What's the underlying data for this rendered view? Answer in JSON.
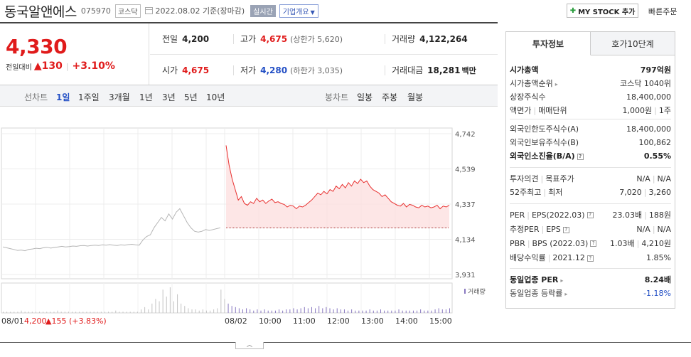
{
  "header": {
    "stock_name": "동국알앤에스",
    "stock_code": "075970",
    "market_tag": "코스닥",
    "date": "2022.08.02",
    "date_suffix": "기준(장마감)",
    "live_tag": "실시간",
    "company_tag": "기업개요",
    "mystock_label": "MY STOCK 추가",
    "quick_order_label": "빠른주문"
  },
  "price": {
    "current": "4,330",
    "diff_label": "전일대비",
    "change_arrow": "▲",
    "change": "130",
    "change_pct": "+3.10%"
  },
  "stats": {
    "prev_close_label": "전일",
    "prev_close": "4,200",
    "high_label": "고가",
    "high": "4,675",
    "upper_limit": "(상한가 5,620)",
    "volume_label": "거래량",
    "volume": "4,122,264",
    "open_label": "시가",
    "open": "4,675",
    "low_label": "저가",
    "low": "4,280",
    "lower_limit": "(하한가 3,035)",
    "amount_label": "거래대금",
    "amount": "18,281",
    "amount_unit": "백만"
  },
  "range_bar": {
    "line_label": "선차트",
    "ranges": [
      "1일",
      "1주일",
      "3개월",
      "1년",
      "3년",
      "5년",
      "10년"
    ],
    "active_range": "1일",
    "candle_label": "봉차트",
    "candles": [
      "일봉",
      "주봉",
      "월봉"
    ]
  },
  "chart_data": {
    "type": "line",
    "y_ticks": [
      "4,742",
      "4,539",
      "4,337",
      "4,134",
      "3,931"
    ],
    "ylim": [
      3931,
      4742
    ],
    "x_ticks": [
      "08/01",
      "08/02",
      "10:00",
      "11:00",
      "12:00",
      "13:00",
      "14:00",
      "15:00"
    ],
    "prev_day_footer": "08/01",
    "prev_day_price": "4,200",
    "prev_day_change": "▲155 (+3.83%)",
    "volume_legend": "거래량",
    "reference_price": 4200,
    "series": [
      {
        "name": "08/01",
        "values": [
          4090,
          4085,
          4080,
          4075,
          4070,
          4072,
          4068,
          4075,
          4078,
          4082,
          4080,
          4085,
          4088,
          4083,
          4087,
          4090,
          4093,
          4090,
          4092,
          4095,
          4093,
          4097,
          4098,
          4095,
          4098,
          4100,
          4098,
          4102,
          4100,
          4103,
          4100,
          4098,
          4102,
          4100,
          4103,
          4105,
          4102,
          4100,
          4130,
          4150,
          4160,
          4200,
          4230,
          4260,
          4240,
          4280,
          4250,
          4290,
          4310,
          4270,
          4230,
          4200,
          4180,
          4175,
          4180,
          4190,
          4185,
          4190,
          4195,
          4200
        ]
      },
      {
        "name": "08/02",
        "values": [
          4675,
          4560,
          4480,
          4420,
          4360,
          4380,
          4340,
          4330,
          4350,
          4340,
          4370,
          4350,
          4360,
          4340,
          4355,
          4365,
          4345,
          4350,
          4340,
          4335,
          4320,
          4330,
          4325,
          4310,
          4325,
          4320,
          4330,
          4345,
          4360,
          4380,
          4400,
          4390,
          4410,
          4395,
          4420,
          4410,
          4440,
          4425,
          4450,
          4430,
          4460,
          4440,
          4470,
          4455,
          4480,
          4460,
          4470,
          4440,
          4420,
          4410,
          4400,
          4380,
          4390,
          4370,
          4350,
          4340,
          4330,
          4325,
          4340,
          4320,
          4335,
          4330,
          4320,
          4315,
          4330,
          4320,
          4325,
          4315,
          4320,
          4330,
          4310,
          4325,
          4320,
          4330
        ]
      }
    ],
    "volume": [
      1,
      1,
      1,
      1,
      1,
      2,
      1,
      1,
      1,
      1,
      1,
      1,
      1,
      1,
      1,
      2,
      1,
      1,
      1,
      1,
      1,
      1,
      1,
      1,
      1,
      1,
      1,
      1,
      1,
      1,
      1,
      2,
      1,
      1,
      1,
      1,
      1,
      1,
      3,
      5,
      3,
      8,
      12,
      10,
      20,
      14,
      22,
      10,
      16,
      8,
      6,
      4,
      3,
      3,
      2,
      3,
      2,
      2,
      3,
      4,
      20,
      12,
      8,
      6,
      5,
      4,
      3,
      4,
      3,
      2,
      3,
      2,
      3,
      2,
      2,
      2,
      3,
      2,
      3,
      3,
      4,
      3,
      4,
      5,
      4,
      5,
      4,
      6,
      4,
      5,
      4,
      3,
      4,
      3,
      3,
      2,
      3,
      2,
      2,
      2,
      2,
      3,
      2,
      2,
      3,
      2,
      2,
      2,
      2,
      3,
      2,
      2,
      2,
      2,
      2,
      3,
      2,
      2,
      2,
      3,
      4,
      3,
      3,
      4
    ]
  },
  "side": {
    "tabs": [
      "투자정보",
      "호가10단계"
    ],
    "rows": [
      {
        "label": "시가총액",
        "value": "797억원",
        "bold": true
      },
      {
        "label": "시가총액순위",
        "value": "코스닥 1040위",
        "arrow": true
      },
      {
        "label": "상장주식수",
        "value": "18,400,000"
      },
      {
        "label": "액면가",
        "label2": "매매단위",
        "value": "1,000원",
        "value2": "1주"
      },
      {
        "label": "외국인한도주식수(A)",
        "value": "18,400,000"
      },
      {
        "label": "외국인보유주식수(B)",
        "value": "100,862"
      },
      {
        "label": "외국인소진율(B/A)",
        "value": "0.55%",
        "bold": true,
        "q": true
      },
      {
        "label": "투자의견",
        "label2": "목표주가",
        "value": "N/A",
        "value2": "N/A"
      },
      {
        "label": "52주최고",
        "label2": "최저",
        "value": "7,020",
        "value2": "3,260"
      },
      {
        "label": "PER",
        "label2": "EPS(2022.03)",
        "value": "23.03배",
        "value2": "188원",
        "q": true
      },
      {
        "label": "추정PER",
        "label2": "EPS",
        "value": "N/A",
        "value2": "N/A",
        "q": true
      },
      {
        "label": "PBR",
        "label2": "BPS (2022.03)",
        "value": "1.03배",
        "value2": "4,210원",
        "q": true
      },
      {
        "label": "배당수익률",
        "label2": "2021.12",
        "value": "1.85%",
        "q": true
      },
      {
        "label": "동일업종 PER",
        "value": "8.24배",
        "bold": true,
        "arrow": true
      },
      {
        "label": "동일업종 등락률",
        "value": "-1.18%",
        "blue": true,
        "arrow": true
      }
    ]
  },
  "colors": {
    "up": "#e01b1b",
    "down": "#2450c5",
    "line_today": "#e8302f",
    "fill_today": "#fde0e0",
    "line_prev": "#b5b5b5",
    "volume_today": "#8878c0",
    "volume_prev": "#c4c4c4"
  }
}
